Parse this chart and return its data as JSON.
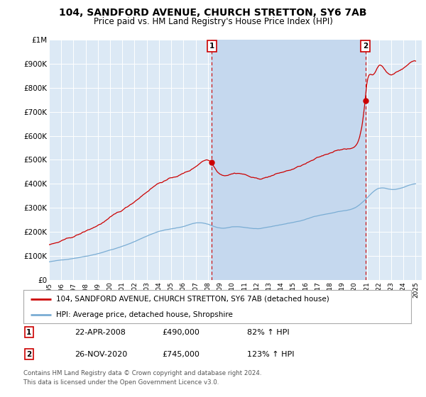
{
  "title": "104, SANDFORD AVENUE, CHURCH STRETTON, SY6 7AB",
  "subtitle": "Price paid vs. HM Land Registry's House Price Index (HPI)",
  "title_fontsize": 10,
  "subtitle_fontsize": 8.5,
  "background_color": "#ffffff",
  "plot_bg_color": "#dce9f5",
  "shade_color": "#c5d8ee",
  "grid_color": "#ffffff",
  "red_line_color": "#cc0000",
  "blue_line_color": "#7aadd4",
  "sale1_year": 2008.31,
  "sale1_price": 490000,
  "sale1_label": "1",
  "sale2_year": 2020.9,
  "sale2_price": 745000,
  "sale2_label": "2",
  "ylabel_ticks": [
    "£0",
    "£100K",
    "£200K",
    "£300K",
    "£400K",
    "£500K",
    "£600K",
    "£700K",
    "£800K",
    "£900K",
    "£1M"
  ],
  "ytick_values": [
    0,
    100000,
    200000,
    300000,
    400000,
    500000,
    600000,
    700000,
    800000,
    900000,
    1000000
  ],
  "xmin": 1995,
  "xmax": 2025.5,
  "ymin": 0,
  "ymax": 1000000,
  "legend_red": "104, SANDFORD AVENUE, CHURCH STRETTON, SY6 7AB (detached house)",
  "legend_blue": "HPI: Average price, detached house, Shropshire",
  "annotation1_date": "22-APR-2008",
  "annotation1_price": "£490,000",
  "annotation1_pct": "82% ↑ HPI",
  "annotation2_date": "26-NOV-2020",
  "annotation2_price": "£745,000",
  "annotation2_pct": "123% ↑ HPI",
  "footer": "Contains HM Land Registry data © Crown copyright and database right 2024.\nThis data is licensed under the Open Government Licence v3.0."
}
